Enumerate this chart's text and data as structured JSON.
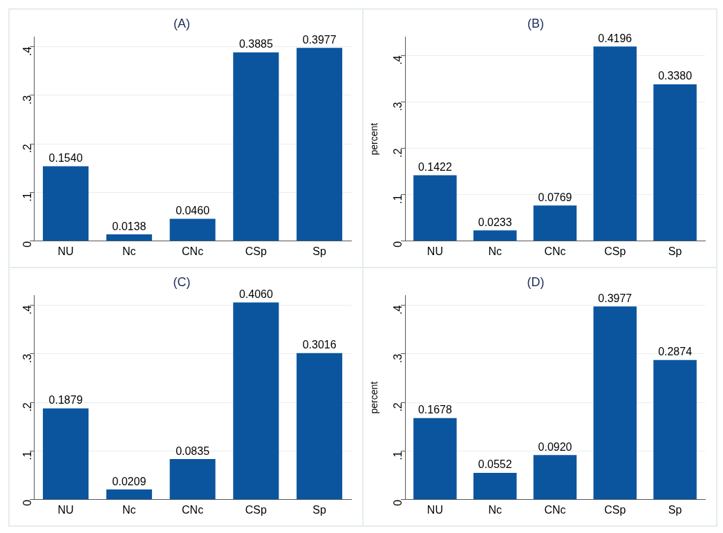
{
  "chart_data": [
    {
      "type": "bar",
      "title": "(A)",
      "categories": [
        "NU",
        "Nc",
        "CNc",
        "CSp",
        "Sp"
      ],
      "values": [
        0.154,
        0.0138,
        0.046,
        0.3885,
        0.3977
      ],
      "value_labels": [
        "0.1540",
        "0.0138",
        "0.0460",
        "0.3885",
        "0.3977"
      ],
      "color": "#0b559f",
      "ylim": [
        0,
        0.42
      ],
      "yticks": [
        {
          "value": 0,
          "label": "0"
        },
        {
          "value": 0.1,
          "label": ".1"
        },
        {
          "value": 0.2,
          "label": ".2"
        },
        {
          "value": 0.3,
          "label": ".3"
        },
        {
          "value": 0.4,
          "label": ".4"
        }
      ],
      "grid": "y",
      "legend": false
    },
    {
      "type": "bar",
      "title": "(B)",
      "ylabel": "percent",
      "categories": [
        "NU",
        "Nc",
        "CNc",
        "CSp",
        "Sp"
      ],
      "values": [
        0.1422,
        0.0233,
        0.0769,
        0.4196,
        0.338
      ],
      "value_labels": [
        "0.1422",
        "0.0233",
        "0.0769",
        "0.4196",
        "0.3380"
      ],
      "color": "#0b559f",
      "ylim": [
        0,
        0.44
      ],
      "yticks": [
        {
          "value": 0,
          "label": "0"
        },
        {
          "value": 0.1,
          "label": ".1"
        },
        {
          "value": 0.2,
          "label": ".2"
        },
        {
          "value": 0.3,
          "label": ".3"
        },
        {
          "value": 0.4,
          "label": ".4"
        }
      ],
      "grid": "y",
      "legend": false
    },
    {
      "type": "bar",
      "title": "(C)",
      "categories": [
        "NU",
        "Nc",
        "CNc",
        "CSp",
        "Sp"
      ],
      "values": [
        0.1879,
        0.0209,
        0.0835,
        0.406,
        0.3016
      ],
      "value_labels": [
        "0.1879",
        "0.0209",
        "0.0835",
        "0.4060",
        "0.3016"
      ],
      "color": "#0b559f",
      "ylim": [
        0,
        0.42
      ],
      "yticks": [
        {
          "value": 0,
          "label": "0"
        },
        {
          "value": 0.1,
          "label": ".1"
        },
        {
          "value": 0.2,
          "label": ".2"
        },
        {
          "value": 0.3,
          "label": ".3"
        },
        {
          "value": 0.4,
          "label": ".4"
        }
      ],
      "grid": "y",
      "legend": false
    },
    {
      "type": "bar",
      "title": "(D)",
      "ylabel": "percent",
      "categories": [
        "NU",
        "Nc",
        "CNc",
        "CSp",
        "Sp"
      ],
      "values": [
        0.1678,
        0.0552,
        0.092,
        0.3977,
        0.2874
      ],
      "value_labels": [
        "0.1678",
        "0.0552",
        "0.0920",
        "0.3977",
        "0.2874"
      ],
      "color": "#0b559f",
      "ylim": [
        0,
        0.42
      ],
      "yticks": [
        {
          "value": 0,
          "label": "0"
        },
        {
          "value": 0.1,
          "label": ".1"
        },
        {
          "value": 0.2,
          "label": ".2"
        },
        {
          "value": 0.3,
          "label": ".3"
        },
        {
          "value": 0.4,
          "label": ".4"
        }
      ],
      "grid": "y",
      "legend": false
    }
  ]
}
